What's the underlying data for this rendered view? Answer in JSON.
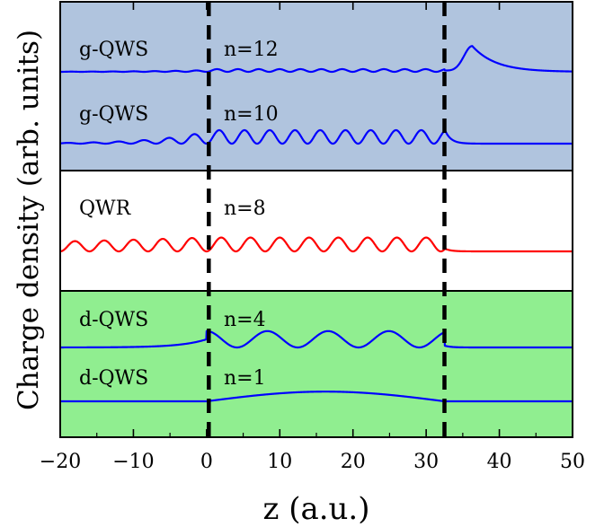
{
  "chart_data": {
    "type": "line",
    "title": "",
    "xlabel": "z (a.u.)",
    "ylabel": "Charge density (arb. units)",
    "xlim": [
      -20,
      50
    ],
    "x_ticks": [
      "−20",
      "−10",
      "0",
      "10",
      "20",
      "30",
      "40",
      "50"
    ],
    "y_ticks": [],
    "grid": false,
    "vertical_lines_x": [
      0.3,
      32.5
    ],
    "panels": [
      {
        "name": "g-QWS",
        "color": "#b0c4de"
      },
      {
        "name": "QWR",
        "color": "#ffffff"
      },
      {
        "name": "d-QWS",
        "color": "#90ee90"
      }
    ],
    "series": [
      {
        "name": "g-QWS n=12",
        "panel": 0,
        "label": "g-QWS",
        "n_label": "n=12",
        "color": "#0000ff",
        "baseline": 0,
        "z_range": [
          -20,
          50
        ],
        "well": [
          0,
          32.5
        ],
        "in_well": {
          "type": "wave",
          "amplitude": 0.1,
          "period": 2.85
        },
        "left": {
          "type": "wave",
          "amplitude": 0.06,
          "period": 2.85,
          "decay": 9
        },
        "right_peak": {
          "z": 36.3,
          "height": 0.95
        }
      },
      {
        "name": "g-QWS n=10",
        "panel": 0,
        "label": "g-QWS",
        "n_label": "n=10",
        "color": "#0000ff",
        "baseline": 0,
        "z_range": [
          -20,
          50
        ],
        "well": [
          0,
          32.5
        ],
        "in_well": {
          "type": "wave",
          "amplitude": 0.5,
          "period": 3.45
        },
        "left": {
          "type": "wave",
          "amplitude": 0.45,
          "period": 3.45,
          "decay": 7
        },
        "right_peak": {
          "z": 33.2,
          "height": 0.55
        }
      },
      {
        "name": "QWR n=8",
        "panel": 1,
        "label": "QWR",
        "n_label": "n=8",
        "color": "#ff0000",
        "baseline": 0,
        "z_range": [
          -20,
          50
        ],
        "well": [
          0,
          32.5
        ],
        "in_well": {
          "type": "wave",
          "amplitude": 0.7,
          "period": 4.0
        },
        "left": {
          "type": "wave",
          "amplitude": 0.7,
          "period": 4.0,
          "decay": 60
        },
        "right_peak": {
          "z": 32.6,
          "height": 0.15
        }
      },
      {
        "name": "d-QWS n=4",
        "panel": 2,
        "label": "d-QWS",
        "n_label": "n=4",
        "color": "#0000ff",
        "baseline": 0,
        "z_range": [
          -20,
          50
        ],
        "well": [
          0,
          32.5
        ],
        "in_well": {
          "type": "wave",
          "amplitude": 0.7,
          "period": 8.3
        },
        "left": {
          "type": "decay",
          "amplitude": 0.35,
          "decay": 3.5
        },
        "right_peak": {
          "z": 32.6,
          "height": 0.08
        }
      },
      {
        "name": "d-QWS n=1",
        "panel": 2,
        "label": "d-QWS",
        "n_label": "n=1",
        "color": "#0000ff",
        "baseline": 0,
        "z_range": [
          -20,
          50
        ],
        "well": [
          0,
          32.5
        ],
        "in_well": {
          "type": "hump",
          "amplitude": 0.6,
          "center": 16
        },
        "left": {
          "type": "flat"
        },
        "right_peak": {
          "z": 32.5,
          "height": 0.0
        }
      }
    ]
  }
}
